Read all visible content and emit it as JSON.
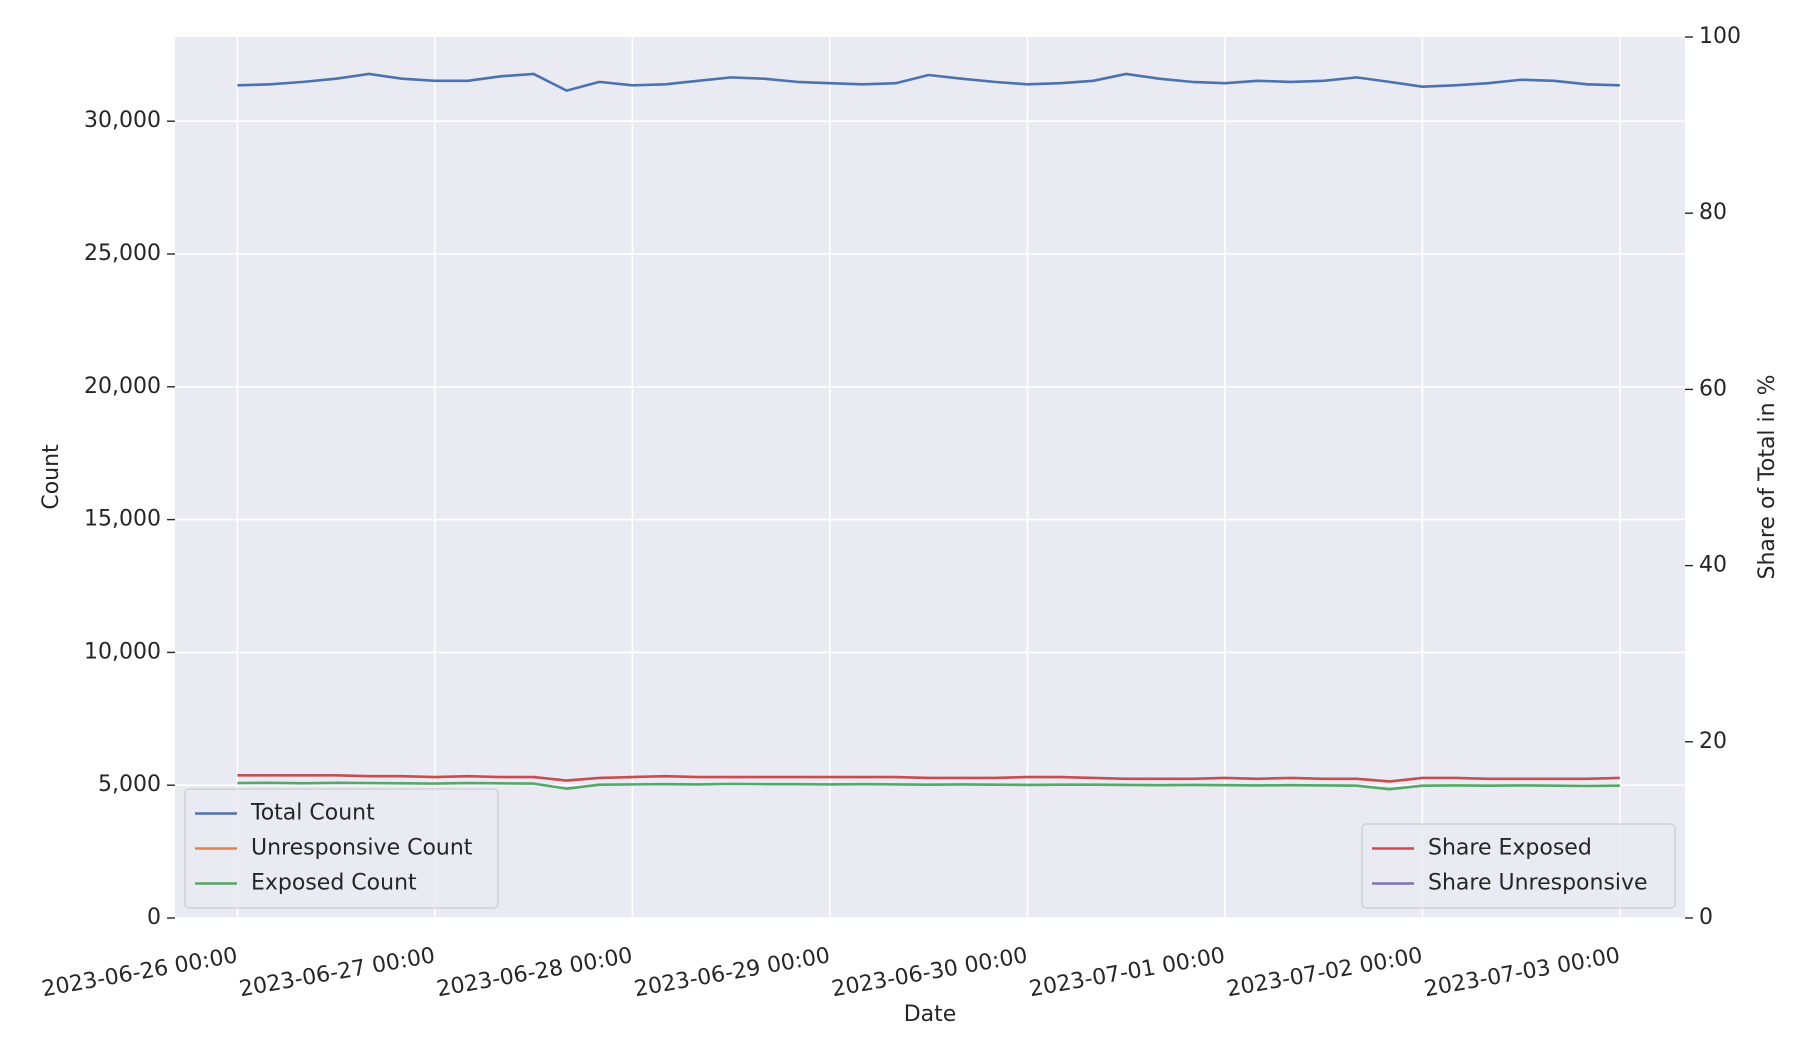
{
  "chart_data": {
    "type": "line",
    "xlabel": "Date",
    "ylabel": "Count",
    "y2label": "Share of Total in %",
    "x": [
      "2023-06-26 00:00",
      "2023-06-26 04:00",
      "2023-06-26 08:00",
      "2023-06-26 12:00",
      "2023-06-26 16:00",
      "2023-06-26 20:00",
      "2023-06-27 00:00",
      "2023-06-27 04:00",
      "2023-06-27 08:00",
      "2023-06-27 12:00",
      "2023-06-27 16:00",
      "2023-06-27 20:00",
      "2023-06-28 00:00",
      "2023-06-28 04:00",
      "2023-06-28 08:00",
      "2023-06-28 12:00",
      "2023-06-28 16:00",
      "2023-06-28 20:00",
      "2023-06-29 00:00",
      "2023-06-29 04:00",
      "2023-06-29 08:00",
      "2023-06-29 12:00",
      "2023-06-29 16:00",
      "2023-06-29 20:00",
      "2023-06-30 00:00",
      "2023-06-30 04:00",
      "2023-06-30 08:00",
      "2023-06-30 12:00",
      "2023-06-30 16:00",
      "2023-06-30 20:00",
      "2023-07-01 00:00",
      "2023-07-01 04:00",
      "2023-07-01 08:00",
      "2023-07-01 12:00",
      "2023-07-01 16:00",
      "2023-07-01 20:00",
      "2023-07-02 00:00",
      "2023-07-02 04:00",
      "2023-07-02 08:00",
      "2023-07-02 12:00",
      "2023-07-02 16:00",
      "2023-07-02 20:00",
      "2023-07-03 00:00"
    ],
    "series": [
      {
        "name": "Total Count",
        "color": "#4c72b0",
        "axis": "y",
        "values": [
          31350,
          31390,
          31480,
          31600,
          31780,
          31600,
          31520,
          31520,
          31690,
          31780,
          31150,
          31480,
          31350,
          31390,
          31520,
          31650,
          31600,
          31480,
          31430,
          31390,
          31430,
          31740,
          31600,
          31480,
          31390,
          31430,
          31520,
          31780,
          31600,
          31480,
          31430,
          31520,
          31480,
          31520,
          31650,
          31480,
          31300,
          31350,
          31430,
          31560,
          31520,
          31390,
          31350
        ]
      },
      {
        "name": "Unresponsive Count",
        "color": "#dd8452",
        "axis": "y",
        "values": [
          null,
          null,
          null,
          null,
          null,
          null,
          null,
          null,
          null,
          null,
          null,
          null,
          null,
          null,
          null,
          null,
          null,
          null,
          null,
          null,
          null,
          null,
          null,
          null,
          null,
          null,
          null,
          null,
          null,
          null,
          null,
          null,
          null,
          null,
          null,
          null,
          null,
          null,
          null,
          null,
          null,
          null,
          null
        ]
      },
      {
        "name": "Exposed Count",
        "color": "#55a868",
        "axis": "y",
        "values": [
          5080,
          5090,
          5070,
          5090,
          5080,
          5070,
          5060,
          5080,
          5070,
          5060,
          4870,
          5020,
          5030,
          5040,
          5030,
          5050,
          5040,
          5040,
          5030,
          5040,
          5030,
          5020,
          5030,
          5020,
          5010,
          5020,
          5020,
          5010,
          5000,
          5010,
          5000,
          4990,
          5000,
          4990,
          4980,
          4850,
          4980,
          4990,
          4980,
          4990,
          4980,
          4970,
          4980
        ]
      },
      {
        "name": "Share Exposed",
        "color": "#c44e52",
        "axis": "y2",
        "values": [
          16.2,
          16.2,
          16.2,
          16.2,
          16.1,
          16.1,
          16.0,
          16.1,
          16.0,
          16.0,
          15.6,
          15.9,
          16.0,
          16.1,
          16.0,
          16.0,
          16.0,
          16.0,
          16.0,
          16.0,
          16.0,
          15.9,
          15.9,
          15.9,
          16.0,
          16.0,
          15.9,
          15.8,
          15.8,
          15.8,
          15.9,
          15.8,
          15.9,
          15.8,
          15.8,
          15.5,
          15.9,
          15.9,
          15.8,
          15.8,
          15.8,
          15.8,
          15.9
        ]
      },
      {
        "name": "Share Unresponsive",
        "color": "#8172b3",
        "axis": "y2",
        "values": [
          null,
          null,
          null,
          null,
          null,
          null,
          null,
          null,
          null,
          null,
          null,
          null,
          null,
          null,
          null,
          null,
          null,
          null,
          null,
          null,
          null,
          null,
          null,
          null,
          null,
          null,
          null,
          null,
          null,
          null,
          null,
          null,
          null,
          null,
          null,
          null,
          null,
          null,
          null,
          null,
          null,
          null,
          null
        ]
      }
    ],
    "xlim": [
      "2023-06-25 16:25",
      "2023-07-03 07:55"
    ],
    "xticks": [
      "2023-06-26 00:00",
      "2023-06-27 00:00",
      "2023-06-28 00:00",
      "2023-06-29 00:00",
      "2023-06-30 00:00",
      "2023-07-01 00:00",
      "2023-07-02 00:00",
      "2023-07-03 00:00"
    ],
    "ylim": [
      0,
      33170
    ],
    "yticks": [
      0,
      {
        "value": 5000,
        "label": "5,000"
      },
      {
        "value": 10000,
        "label": "10,000"
      },
      {
        "value": 15000,
        "label": "15,000"
      },
      {
        "value": 20000,
        "label": "20,000"
      },
      {
        "value": 25000,
        "label": "25,000"
      },
      {
        "value": 30000,
        "label": "30,000"
      }
    ],
    "y2lim": [
      0,
      100
    ],
    "y2ticks": [
      0,
      20,
      40,
      60,
      80,
      100
    ],
    "grid": true,
    "background": "#eaeaf2",
    "legend": "lower left",
    "legend2": "lower right"
  }
}
